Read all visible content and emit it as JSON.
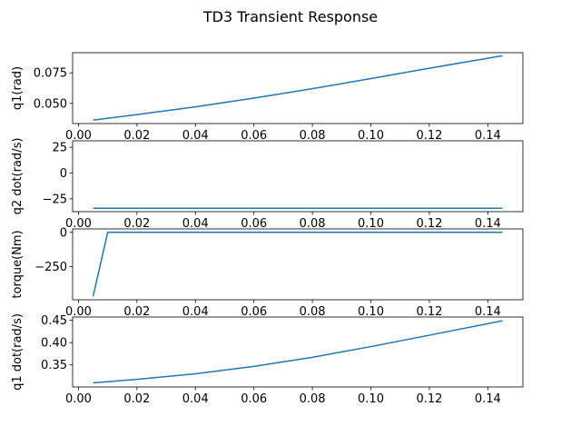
{
  "figure": {
    "title": "TD3 Transient Response",
    "line_color": "#1f77b4",
    "axis_color": "#000000",
    "background": "#ffffff"
  },
  "chart_data": [
    {
      "type": "line",
      "ylabel": "q1(rad)",
      "xlim": [
        -0.002,
        0.152
      ],
      "ylim": [
        0.0335,
        0.0915
      ],
      "xticks": [
        0.0,
        0.02,
        0.04,
        0.06,
        0.08,
        0.1,
        0.12,
        0.14
      ],
      "xtick_labels": [
        "0.00",
        "0.02",
        "0.04",
        "0.06",
        "0.08",
        "0.10",
        "0.12",
        "0.14"
      ],
      "yticks": [
        0.05,
        0.075
      ],
      "ytick_labels": [
        "0.050",
        "0.075"
      ],
      "series": [
        {
          "x": [
            0.005,
            0.02,
            0.04,
            0.06,
            0.08,
            0.1,
            0.12,
            0.145
          ],
          "y": [
            0.0363,
            0.0408,
            0.0472,
            0.0543,
            0.062,
            0.0703,
            0.0788,
            0.089
          ]
        }
      ]
    },
    {
      "type": "line",
      "ylabel": "q2 dot(rad/s)",
      "xlim": [
        -0.002,
        0.152
      ],
      "ylim": [
        -37.5,
        31.3
      ],
      "xticks": [
        0.0,
        0.02,
        0.04,
        0.06,
        0.08,
        0.1,
        0.12,
        0.14
      ],
      "xtick_labels": [
        "0.00",
        "0.02",
        "0.04",
        "0.06",
        "0.08",
        "0.10",
        "0.12",
        "0.14"
      ],
      "yticks": [
        -25,
        0,
        25
      ],
      "ytick_labels": [
        "−25",
        "0",
        "25"
      ],
      "series": [
        {
          "x": [
            0.005,
            0.145
          ],
          "y": [
            -34.2,
            -34.2
          ]
        }
      ]
    },
    {
      "type": "line",
      "ylabel": "torque(Nm)",
      "xlim": [
        -0.002,
        0.152
      ],
      "ylim": [
        -490,
        25
      ],
      "xticks": [
        0.0,
        0.02,
        0.04,
        0.06,
        0.08,
        0.1,
        0.12,
        0.14
      ],
      "xtick_labels": [
        "0.00",
        "0.02",
        "0.04",
        "0.06",
        "0.08",
        "0.10",
        "0.12",
        "0.14"
      ],
      "yticks": [
        -250,
        0
      ],
      "ytick_labels": [
        "−250",
        "0"
      ],
      "series": [
        {
          "x": [
            0.005,
            0.01,
            0.145
          ],
          "y": [
            -465,
            0,
            0
          ]
        }
      ]
    },
    {
      "type": "line",
      "ylabel": "q1 dot(rad/s)",
      "xlim": [
        -0.002,
        0.152
      ],
      "ylim": [
        0.3005,
        0.4575
      ],
      "xticks": [
        0.0,
        0.02,
        0.04,
        0.06,
        0.08,
        0.1,
        0.12,
        0.14
      ],
      "xtick_labels": [
        "0.00",
        "0.02",
        "0.04",
        "0.06",
        "0.08",
        "0.10",
        "0.12",
        "0.14"
      ],
      "yticks": [
        0.35,
        0.4,
        0.45
      ],
      "ytick_labels": [
        "0.35",
        "0.40",
        "0.45"
      ],
      "series": [
        {
          "x": [
            0.005,
            0.02,
            0.04,
            0.06,
            0.08,
            0.1,
            0.12,
            0.145
          ],
          "y": [
            0.3096,
            0.3176,
            0.3301,
            0.3466,
            0.3671,
            0.3911,
            0.4166,
            0.4491
          ]
        }
      ]
    }
  ]
}
